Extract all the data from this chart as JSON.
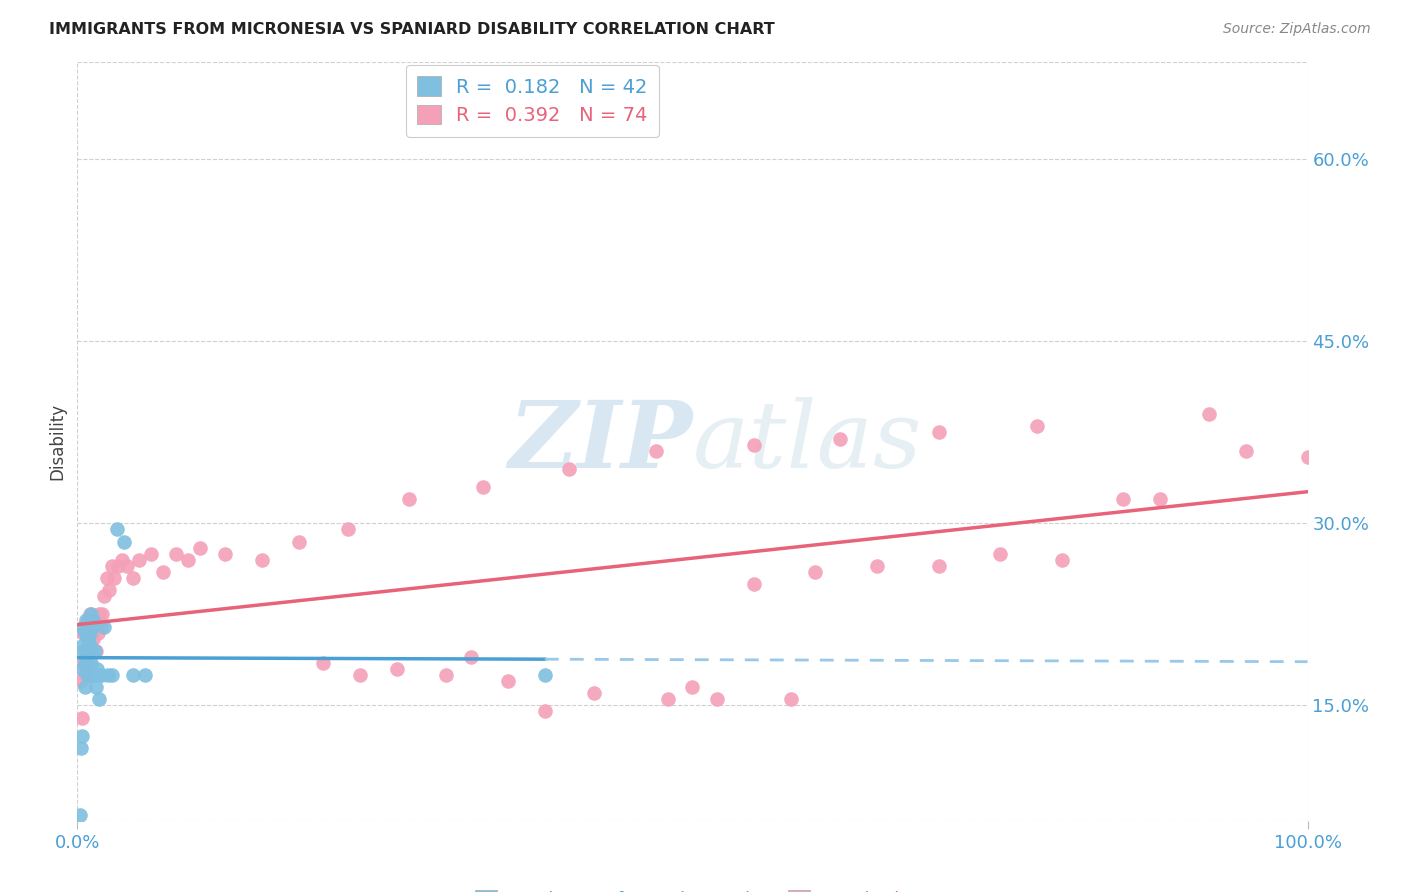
{
  "title": "IMMIGRANTS FROM MICRONESIA VS SPANIARD DISABILITY CORRELATION CHART",
  "source": "Source: ZipAtlas.com",
  "ylabel": "Disability",
  "xlim": [
    0.0,
    1.0
  ],
  "ylim": [
    0.055,
    0.68
  ],
  "yticks": [
    0.15,
    0.3,
    0.45,
    0.6
  ],
  "ytick_labels": [
    "15.0%",
    "30.0%",
    "45.0%",
    "60.0%"
  ],
  "xtick_labels": [
    "0.0%",
    "100.0%"
  ],
  "legend_r1": "0.182",
  "legend_n1": "42",
  "legend_r2": "0.392",
  "legend_n2": "74",
  "watermark_zip": "ZIP",
  "watermark_atlas": "atlas",
  "color_blue_scatter": "#7fbfdf",
  "color_pink_scatter": "#f4a0b8",
  "color_blue_line": "#4a9fd4",
  "color_pink_line": "#e8637a",
  "color_blue_dashed": "#99c8e8",
  "color_axis_tick": "#4a9fd4",
  "background_color": "#ffffff",
  "grid_color": "#d0d0d0",
  "mic_x": [
    0.002,
    0.003,
    0.004,
    0.004,
    0.005,
    0.005,
    0.005,
    0.006,
    0.006,
    0.006,
    0.007,
    0.007,
    0.007,
    0.008,
    0.008,
    0.008,
    0.009,
    0.009,
    0.009,
    0.01,
    0.01,
    0.01,
    0.011,
    0.011,
    0.012,
    0.012,
    0.013,
    0.013,
    0.014,
    0.015,
    0.016,
    0.017,
    0.018,
    0.02,
    0.022,
    0.025,
    0.028,
    0.032,
    0.038,
    0.045,
    0.055,
    0.38
  ],
  "mic_y": [
    0.06,
    0.115,
    0.125,
    0.18,
    0.2,
    0.215,
    0.195,
    0.21,
    0.185,
    0.165,
    0.195,
    0.22,
    0.185,
    0.21,
    0.195,
    0.175,
    0.215,
    0.205,
    0.185,
    0.21,
    0.2,
    0.175,
    0.225,
    0.185,
    0.215,
    0.195,
    0.22,
    0.175,
    0.195,
    0.165,
    0.18,
    0.175,
    0.155,
    0.175,
    0.215,
    0.175,
    0.175,
    0.295,
    0.285,
    0.175,
    0.175,
    0.175
  ],
  "spa_x": [
    0.003,
    0.004,
    0.005,
    0.005,
    0.006,
    0.006,
    0.007,
    0.007,
    0.008,
    0.008,
    0.009,
    0.009,
    0.01,
    0.01,
    0.011,
    0.012,
    0.013,
    0.014,
    0.015,
    0.016,
    0.017,
    0.018,
    0.019,
    0.02,
    0.022,
    0.024,
    0.026,
    0.028,
    0.03,
    0.033,
    0.036,
    0.04,
    0.045,
    0.05,
    0.06,
    0.07,
    0.08,
    0.09,
    0.1,
    0.12,
    0.15,
    0.18,
    0.22,
    0.27,
    0.33,
    0.4,
    0.47,
    0.55,
    0.62,
    0.7,
    0.78,
    0.85,
    0.92,
    1.0,
    0.5,
    0.52,
    0.58,
    0.38,
    0.42,
    0.48,
    0.3,
    0.32,
    0.35,
    0.2,
    0.23,
    0.26,
    0.55,
    0.6,
    0.65,
    0.7,
    0.75,
    0.8,
    0.88,
    0.95
  ],
  "spa_y": [
    0.17,
    0.14,
    0.21,
    0.185,
    0.195,
    0.175,
    0.215,
    0.195,
    0.21,
    0.185,
    0.22,
    0.195,
    0.225,
    0.195,
    0.21,
    0.215,
    0.205,
    0.22,
    0.195,
    0.215,
    0.21,
    0.225,
    0.215,
    0.225,
    0.24,
    0.255,
    0.245,
    0.265,
    0.255,
    0.265,
    0.27,
    0.265,
    0.255,
    0.27,
    0.275,
    0.26,
    0.275,
    0.27,
    0.28,
    0.275,
    0.27,
    0.285,
    0.295,
    0.32,
    0.33,
    0.345,
    0.36,
    0.365,
    0.37,
    0.375,
    0.38,
    0.32,
    0.39,
    0.355,
    0.165,
    0.155,
    0.155,
    0.145,
    0.16,
    0.155,
    0.175,
    0.19,
    0.17,
    0.185,
    0.175,
    0.18,
    0.25,
    0.26,
    0.265,
    0.265,
    0.275,
    0.27,
    0.32,
    0.36
  ]
}
